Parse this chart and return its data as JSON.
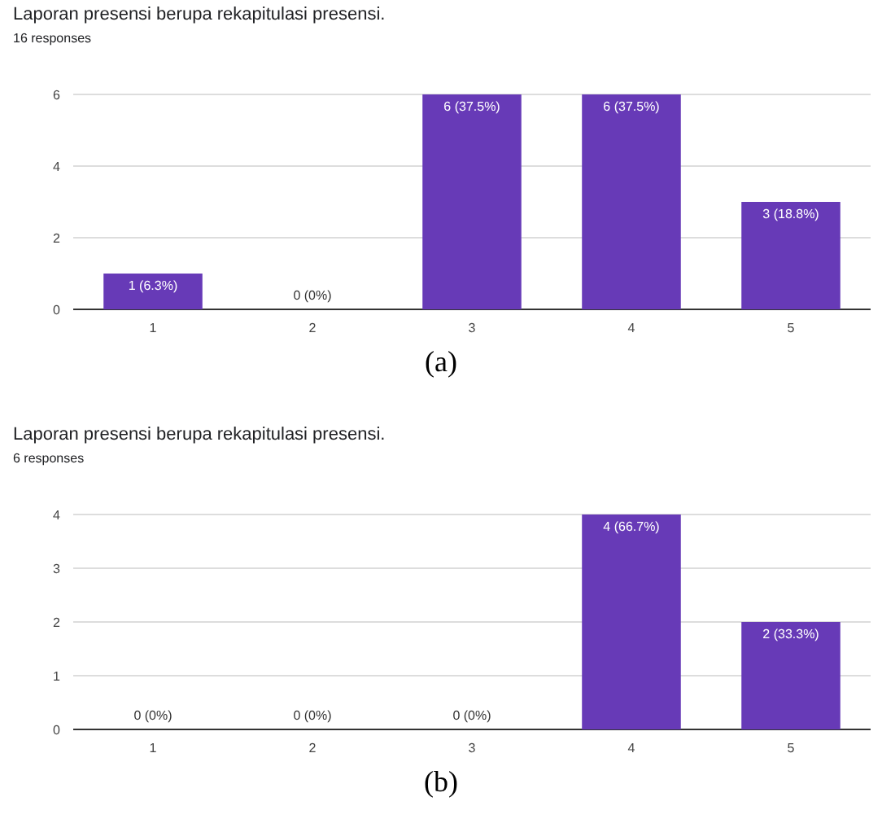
{
  "chart_data": [
    {
      "type": "bar",
      "title": "Laporan presensi berupa rekapitulasi presensi.",
      "subtitle": "16 responses",
      "categories": [
        "1",
        "2",
        "3",
        "4",
        "5"
      ],
      "values": [
        1,
        0,
        6,
        6,
        3
      ],
      "value_labels": [
        "1 (6.3%)",
        "0 (0%)",
        "6 (37.5%)",
        "6 (37.5%)",
        "3 (18.8%)"
      ],
      "color": "#673ab7",
      "ylim": [
        0,
        6
      ],
      "yticks": [
        0,
        2,
        4,
        6
      ],
      "grid": "y",
      "annotations": [
        "(a)"
      ]
    },
    {
      "type": "bar",
      "title": "Laporan presensi berupa rekapitulasi presensi.",
      "subtitle": "6 responses",
      "categories": [
        "1",
        "2",
        "3",
        "4",
        "5"
      ],
      "values": [
        0,
        0,
        0,
        4,
        2
      ],
      "value_labels": [
        "0 (0%)",
        "0 (0%)",
        "0 (0%)",
        "4 (66.7%)",
        "2 (33.3%)"
      ],
      "color": "#673ab7",
      "ylim": [
        0,
        4
      ],
      "yticks": [
        0,
        1,
        2,
        3,
        4
      ],
      "grid": "y",
      "annotations": [
        "(b)"
      ]
    }
  ]
}
